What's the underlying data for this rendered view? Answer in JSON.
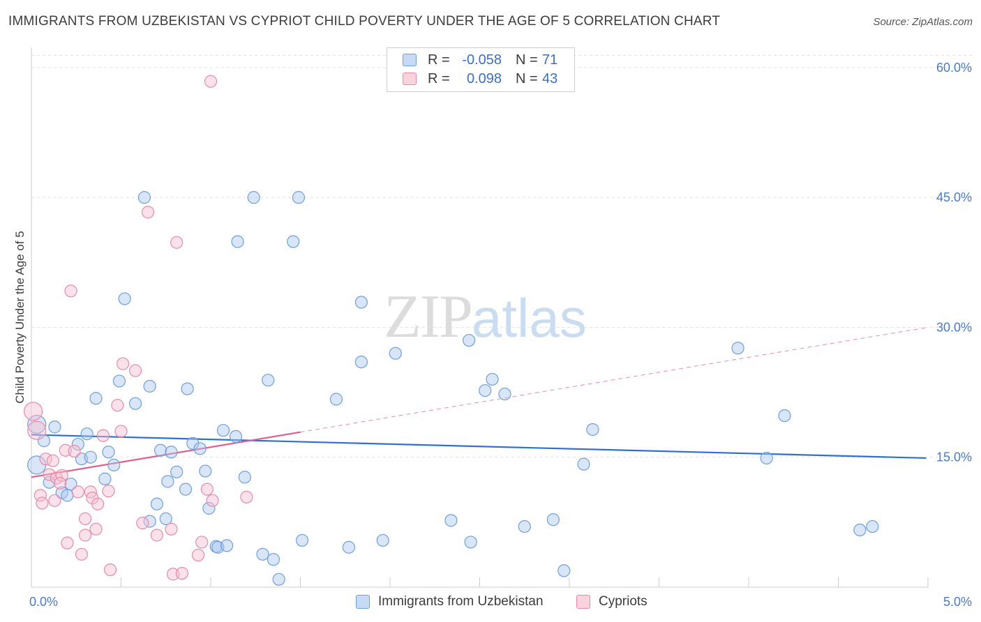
{
  "header": {
    "title": "IMMIGRANTS FROM UZBEKISTAN VS CYPRIOT CHILD POVERTY UNDER THE AGE OF 5 CORRELATION CHART",
    "source": "Source: ZipAtlas.com"
  },
  "watermark": {
    "zip": "ZIP",
    "atlas": "atlas"
  },
  "legend": {
    "rows": [
      {
        "r_label": "R =",
        "r_value": "-0.058",
        "n_label": "N =",
        "n_value": "71",
        "color": "#a9c8f0",
        "border": "#6f9fe0"
      },
      {
        "r_label": "R =",
        "r_value": "0.098",
        "n_label": "N =",
        "n_value": "43",
        "color": "#f7bfd0",
        "border": "#e98aa8"
      }
    ]
  },
  "bottom_legend": [
    {
      "label": "Immigrants from Uzbekistan",
      "color": "#a9c8f0",
      "border": "#6f9fe0"
    },
    {
      "label": "Cypriots",
      "color": "#f7bfd0",
      "border": "#e98aa8"
    }
  ],
  "chart_data": {
    "type": "scatter",
    "title": "IMMIGRANTS FROM UZBEKISTAN VS CYPRIOT CHILD POVERTY UNDER THE AGE OF 5 CORRELATION CHART",
    "xlabel": "",
    "ylabel": "Child Poverty Under the Age of 5",
    "xlim": [
      0,
      5
    ],
    "ylim": [
      0,
      62
    ],
    "x_tick_labels": [
      "0.0%",
      "5.0%"
    ],
    "y_ticks": [
      15,
      30,
      45,
      60
    ],
    "y_tick_labels": [
      "15.0%",
      "30.0%",
      "45.0%",
      "60.0%"
    ],
    "grid": true,
    "legend_position": "top-center",
    "series": [
      {
        "name": "Immigrants from Uzbekistan",
        "color": "#6f9fe0",
        "fill": "#a9c8f0",
        "trend": {
          "x": [
            0,
            4.99
          ],
          "y": [
            17.6,
            14.9
          ],
          "style": "solid",
          "color": "#2f6fd0"
        },
        "points": [
          [
            0.03,
            18.8
          ],
          [
            0.07,
            16.9
          ],
          [
            0.13,
            18.5
          ],
          [
            0.03,
            14.1
          ],
          [
            0.1,
            12.1
          ],
          [
            0.17,
            10.9
          ],
          [
            0.2,
            10.6
          ],
          [
            0.22,
            11.9
          ],
          [
            0.26,
            16.5
          ],
          [
            0.28,
            14.8
          ],
          [
            0.31,
            17.7
          ],
          [
            0.33,
            15.0
          ],
          [
            0.36,
            21.8
          ],
          [
            0.41,
            12.5
          ],
          [
            0.43,
            15.6
          ],
          [
            0.46,
            14.1
          ],
          [
            0.49,
            23.8
          ],
          [
            0.52,
            33.3
          ],
          [
            0.58,
            21.2
          ],
          [
            0.63,
            45.0
          ],
          [
            0.66,
            7.6
          ],
          [
            0.66,
            23.2
          ],
          [
            0.7,
            9.6
          ],
          [
            0.72,
            15.8
          ],
          [
            0.75,
            7.9
          ],
          [
            0.76,
            12.2
          ],
          [
            0.78,
            15.6
          ],
          [
            0.81,
            13.3
          ],
          [
            0.86,
            11.3
          ],
          [
            0.87,
            22.9
          ],
          [
            0.9,
            16.6
          ],
          [
            0.94,
            16.0
          ],
          [
            0.97,
            13.4
          ],
          [
            0.99,
            9.1
          ],
          [
            1.03,
            4.7
          ],
          [
            1.04,
            4.6
          ],
          [
            1.07,
            18.1
          ],
          [
            1.09,
            4.8
          ],
          [
            1.14,
            17.4
          ],
          [
            1.15,
            39.9
          ],
          [
            1.19,
            12.7
          ],
          [
            1.24,
            45.0
          ],
          [
            1.29,
            3.8
          ],
          [
            1.32,
            23.9
          ],
          [
            1.35,
            3.2
          ],
          [
            1.38,
            0.9
          ],
          [
            1.46,
            39.9
          ],
          [
            1.49,
            45.0
          ],
          [
            1.51,
            5.4
          ],
          [
            1.7,
            21.7
          ],
          [
            1.77,
            4.6
          ],
          [
            1.84,
            26.0
          ],
          [
            1.84,
            32.9
          ],
          [
            1.96,
            5.4
          ],
          [
            2.03,
            27.0
          ],
          [
            2.34,
            7.7
          ],
          [
            2.44,
            28.5
          ],
          [
            2.45,
            5.2
          ],
          [
            2.53,
            22.7
          ],
          [
            2.57,
            24.0
          ],
          [
            2.64,
            22.3
          ],
          [
            2.75,
            7.0
          ],
          [
            2.91,
            7.8
          ],
          [
            2.97,
            1.9
          ],
          [
            3.08,
            14.2
          ],
          [
            3.13,
            18.2
          ],
          [
            3.94,
            27.6
          ],
          [
            4.1,
            14.9
          ],
          [
            4.2,
            19.8
          ],
          [
            4.62,
            6.6
          ],
          [
            4.69,
            7.0
          ]
        ]
      },
      {
        "name": "Cypriots",
        "color": "#e98aa8",
        "fill": "#f7bfd0",
        "trend": {
          "x": [
            0,
            1.5
          ],
          "y": [
            12.7,
            17.9
          ],
          "style": "solid",
          "color": "#e0608c"
        },
        "trend_extension": {
          "x": [
            1.5,
            5
          ],
          "y": [
            17.9,
            30.0
          ],
          "style": "dashed",
          "color": "#e98aa8"
        },
        "points": [
          [
            0.01,
            20.3
          ],
          [
            0.03,
            18.1
          ],
          [
            0.05,
            10.6
          ],
          [
            0.06,
            9.7
          ],
          [
            0.08,
            14.8
          ],
          [
            0.1,
            13.0
          ],
          [
            0.12,
            14.6
          ],
          [
            0.13,
            10.0
          ],
          [
            0.14,
            12.6
          ],
          [
            0.17,
            12.9
          ],
          [
            0.19,
            15.8
          ],
          [
            0.2,
            5.1
          ],
          [
            0.22,
            34.2
          ],
          [
            0.24,
            15.7
          ],
          [
            0.26,
            11.0
          ],
          [
            0.28,
            3.8
          ],
          [
            0.3,
            7.9
          ],
          [
            0.3,
            6.0
          ],
          [
            0.33,
            11.0
          ],
          [
            0.34,
            10.3
          ],
          [
            0.36,
            6.7
          ],
          [
            0.37,
            9.6
          ],
          [
            0.4,
            17.5
          ],
          [
            0.43,
            11.1
          ],
          [
            0.44,
            2.0
          ],
          [
            0.48,
            21.0
          ],
          [
            0.5,
            18.0
          ],
          [
            0.51,
            25.8
          ],
          [
            0.58,
            25.0
          ],
          [
            0.62,
            7.4
          ],
          [
            0.65,
            43.3
          ],
          [
            0.7,
            6.0
          ],
          [
            0.78,
            6.7
          ],
          [
            0.79,
            1.5
          ],
          [
            0.81,
            39.8
          ],
          [
            0.84,
            1.6
          ],
          [
            0.93,
            3.7
          ],
          [
            0.95,
            5.2
          ],
          [
            0.98,
            11.3
          ],
          [
            1.0,
            58.4
          ],
          [
            1.01,
            10.0
          ],
          [
            1.2,
            10.4
          ],
          [
            0.16,
            12.0
          ]
        ]
      }
    ]
  }
}
